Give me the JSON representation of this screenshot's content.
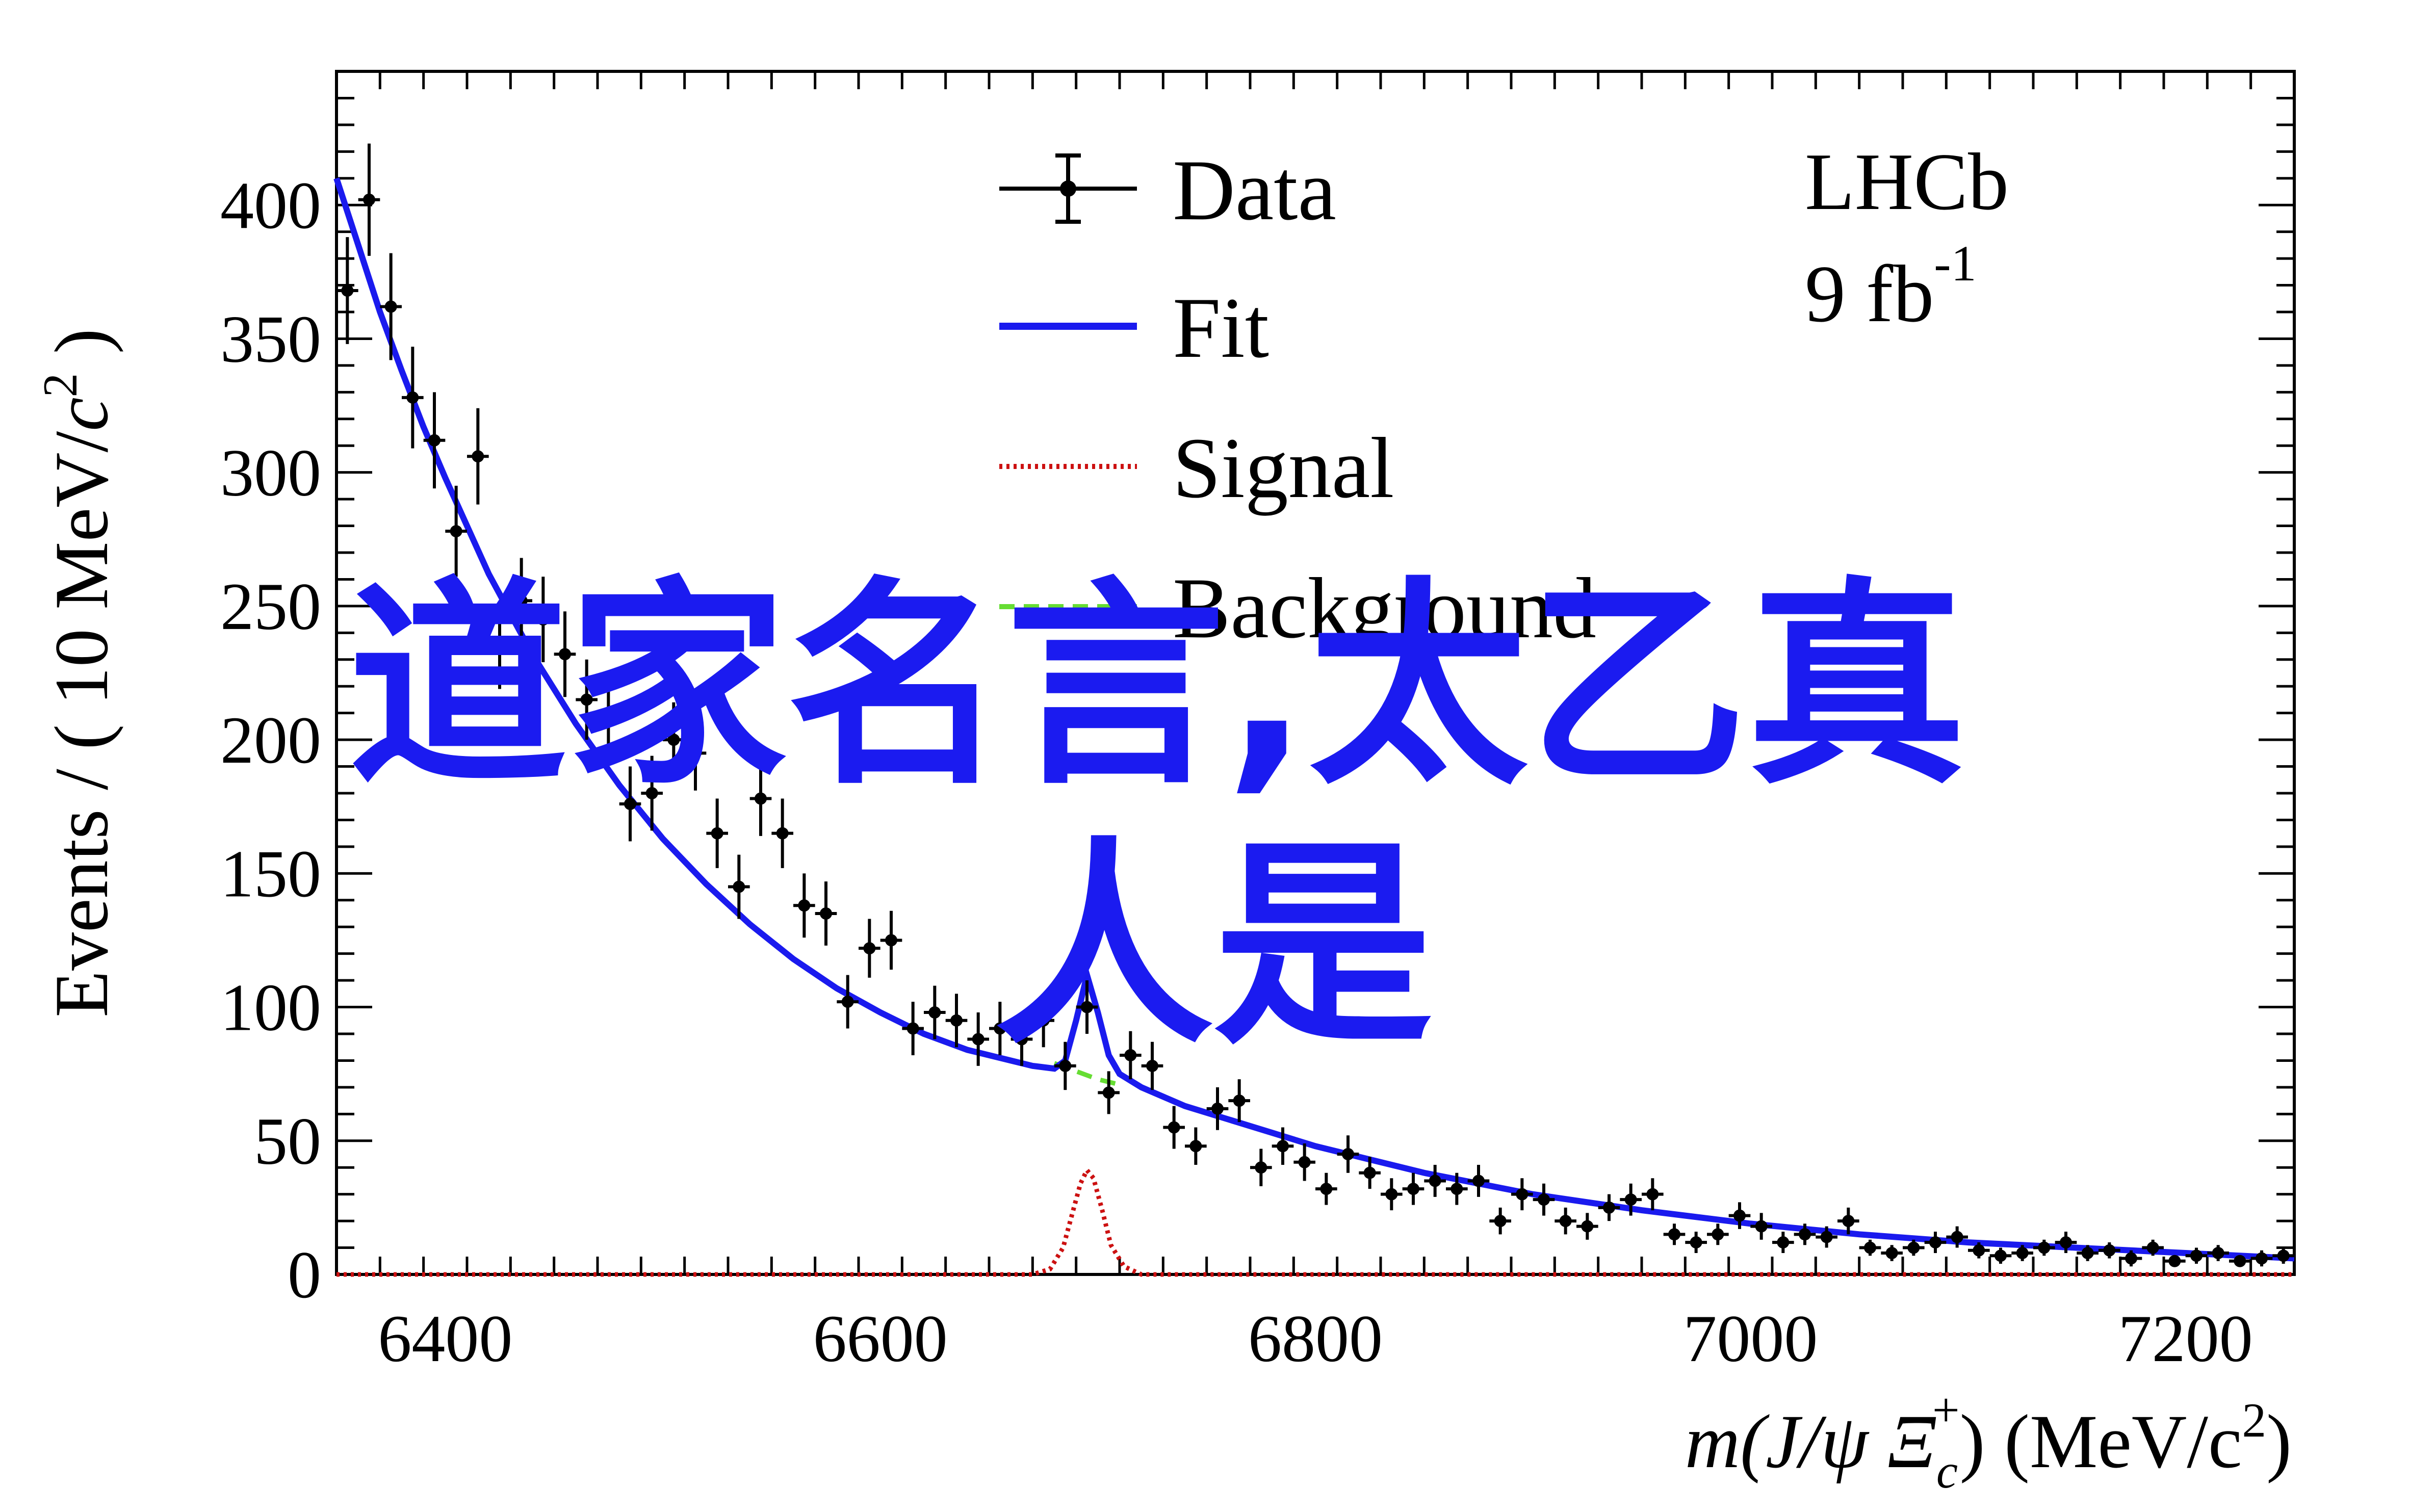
{
  "chart_data": {
    "type": "scatter",
    "xlabel": "m(J/ψ Ξc+) (MeV/c2)",
    "xlabel_parts": {
      "m": "m",
      "open": "(J/ψ ",
      "xi": "Ξ",
      "sub": "c",
      "sup": "+",
      "close": ")",
      "units": " (MeV/c",
      "units_sup": "2",
      "units_close": ")"
    },
    "ylabel": "Events / ( 10 MeV/c2 )",
    "ylabel_parts": {
      "main": "Events / ( 10 MeV/",
      "c": "c",
      "sup": "2",
      "close": " )"
    },
    "xlim": [
      6350,
      7250
    ],
    "ylim": [
      0,
      450
    ],
    "x_ticks": [
      6400,
      6600,
      6800,
      7000,
      7200
    ],
    "y_ticks": [
      0,
      50,
      100,
      150,
      200,
      250,
      300,
      350,
      400
    ],
    "experiment": {
      "name": "LHCb",
      "lumi": "9 fb",
      "lumi_sup": "-1"
    },
    "legend": {
      "position": "top-center",
      "entries": [
        {
          "label": "Data",
          "style": "points",
          "color": "#000000"
        },
        {
          "label": "Fit",
          "style": "solid",
          "color": "#1a1aee"
        },
        {
          "label": "Signal",
          "style": "dotted",
          "color": "#cc1111"
        },
        {
          "label": "Background",
          "style": "dashed",
          "color": "#66dd33"
        }
      ]
    },
    "series": [
      {
        "name": "Data",
        "color": "#000000",
        "x": [
          6355,
          6365,
          6375,
          6385,
          6395,
          6405,
          6415,
          6425,
          6435,
          6445,
          6455,
          6465,
          6475,
          6485,
          6495,
          6505,
          6515,
          6525,
          6535,
          6545,
          6555,
          6565,
          6575,
          6585,
          6595,
          6605,
          6615,
          6625,
          6635,
          6645,
          6655,
          6665,
          6675,
          6685,
          6695,
          6705,
          6715,
          6725,
          6735,
          6745,
          6755,
          6765,
          6775,
          6785,
          6795,
          6805,
          6815,
          6825,
          6835,
          6845,
          6855,
          6865,
          6875,
          6885,
          6895,
          6905,
          6915,
          6925,
          6935,
          6945,
          6955,
          6965,
          6975,
          6985,
          6995,
          7005,
          7015,
          7025,
          7035,
          7045,
          7055,
          7065,
          7075,
          7085,
          7095,
          7105,
          7115,
          7125,
          7135,
          7145,
          7155,
          7165,
          7175,
          7185,
          7195,
          7205,
          7215,
          7225,
          7235,
          7245
        ],
        "y": [
          368,
          402,
          362,
          328,
          312,
          278,
          306,
          235,
          252,
          245,
          232,
          215,
          210,
          176,
          180,
          200,
          195,
          165,
          145,
          178,
          165,
          138,
          135,
          102,
          122,
          125,
          92,
          98,
          95,
          88,
          92,
          88,
          95,
          78,
          100,
          68,
          82,
          78,
          55,
          48,
          62,
          65,
          40,
          48,
          42,
          32,
          45,
          38,
          30,
          32,
          35,
          32,
          35,
          20,
          30,
          28,
          20,
          18,
          25,
          28,
          30,
          15,
          12,
          15,
          22,
          18,
          12,
          15,
          14,
          20,
          10,
          8,
          10,
          12,
          14,
          9,
          7,
          8,
          10,
          12,
          8,
          9,
          6,
          10,
          5,
          7,
          8,
          5,
          6,
          7
        ],
        "err": [
          20,
          21,
          20,
          19,
          18,
          17,
          18,
          16,
          16,
          16,
          16,
          15,
          15,
          14,
          14,
          14,
          14,
          13,
          12,
          14,
          13,
          12,
          12,
          10,
          11,
          11,
          10,
          10,
          10,
          10,
          10,
          10,
          10,
          9,
          10,
          8,
          9,
          9,
          8,
          7,
          8,
          8,
          7,
          7,
          7,
          6,
          7,
          6,
          6,
          6,
          6,
          6,
          6,
          5,
          6,
          6,
          5,
          5,
          5,
          6,
          6,
          4,
          4,
          4,
          5,
          5,
          4,
          4,
          4,
          5,
          3,
          3,
          3,
          4,
          4,
          3,
          3,
          3,
          3,
          4,
          3,
          3,
          3,
          3,
          2,
          3,
          3,
          2,
          3,
          3
        ]
      },
      {
        "name": "Fit",
        "color": "#1a1aee",
        "x": [
          6350,
          6360,
          6370,
          6380,
          6390,
          6400,
          6420,
          6440,
          6460,
          6480,
          6500,
          6520,
          6540,
          6560,
          6580,
          6600,
          6620,
          6640,
          6660,
          6670,
          6680,
          6685,
          6690,
          6695,
          6700,
          6705,
          6710,
          6720,
          6740,
          6760,
          6780,
          6800,
          6850,
          6900,
          6950,
          7000,
          7050,
          7100,
          7150,
          7200,
          7250
        ],
        "y": [
          410,
          385,
          360,
          338,
          317,
          298,
          262,
          232,
          206,
          183,
          163,
          146,
          131,
          118,
          107,
          98,
          90,
          84,
          80,
          78,
          77,
          80,
          95,
          112,
          98,
          82,
          75,
          70,
          63,
          58,
          53,
          48,
          38,
          30,
          24,
          19,
          15,
          12,
          10,
          8,
          6
        ]
      },
      {
        "name": "Signal",
        "color": "#cc1111",
        "x": [
          6350,
          6670,
          6678,
          6684,
          6688,
          6692,
          6695,
          6698,
          6702,
          6706,
          6712,
          6720,
          7250
        ],
        "y": [
          0,
          0,
          2,
          10,
          22,
          34,
          39,
          36,
          24,
          11,
          3,
          0,
          0
        ]
      },
      {
        "name": "Background",
        "color": "#66dd33",
        "x": [
          6680,
          6690,
          6700,
          6710
        ],
        "y": [
          79,
          76,
          73,
          71
        ]
      }
    ]
  },
  "overlay": {
    "line1": "道家名言,太乙真",
    "line2": "人是",
    "color": "#1b1bf0"
  }
}
